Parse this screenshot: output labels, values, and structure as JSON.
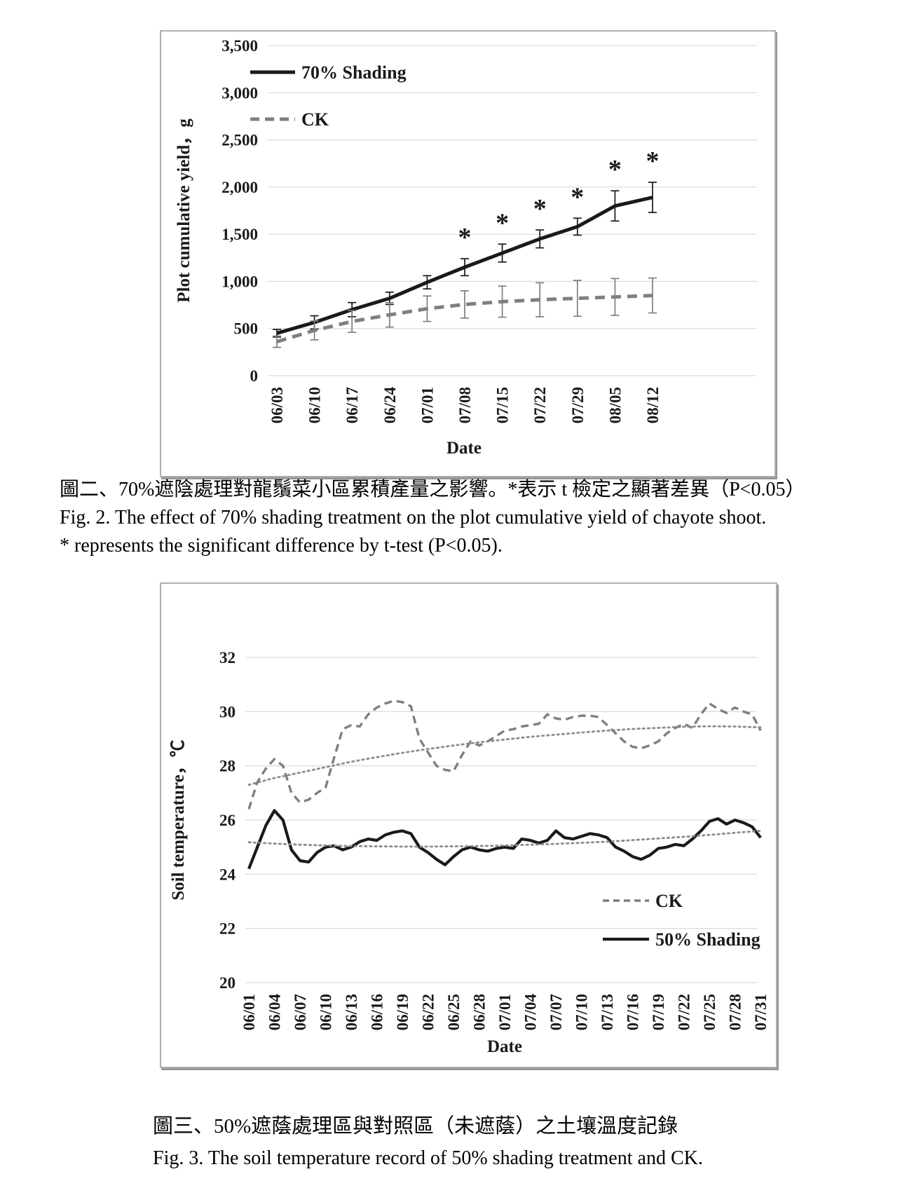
{
  "page": {
    "background": "#ffffff"
  },
  "colors": {
    "black_series": "#1a1a1a",
    "gray_series": "#7f7f7f",
    "trend": "#8c8c8c",
    "grid": "#dcdcdc",
    "text": "#1a1a1a",
    "panel_border": "#aeaeae"
  },
  "chart_data": [
    {
      "type": "line",
      "title": "",
      "xlabel": "Date",
      "ylabel": "Plot cumulative yield，g",
      "ylim": [
        0,
        3500
      ],
      "ytick_step": 500,
      "ytick_labels": [
        "0",
        "500",
        "1,000",
        "1,500",
        "2,000",
        "2,500",
        "3,000",
        "3,500"
      ],
      "grid": true,
      "legend_position": "inside-top-left",
      "categories": [
        "06/03",
        "06/10",
        "06/17",
        "06/24",
        "07/01",
        "07/08",
        "07/15",
        "07/22",
        "07/29",
        "08/05",
        "08/12"
      ],
      "series": [
        {
          "name": "70% Shading",
          "style": "solid",
          "color": "#1a1a1a",
          "width": 5,
          "values": [
            450,
            565,
            700,
            820,
            990,
            1150,
            1300,
            1450,
            1580,
            1800,
            1890
          ],
          "errors": [
            40,
            70,
            75,
            65,
            70,
            90,
            95,
            95,
            90,
            160,
            160
          ]
        },
        {
          "name": "CK",
          "style": "dashed",
          "dash": "14 9",
          "color": "#7f7f7f",
          "width": 5,
          "values": [
            360,
            480,
            575,
            645,
            710,
            755,
            785,
            805,
            820,
            835,
            850
          ],
          "errors": [
            60,
            100,
            115,
            130,
            135,
            145,
            165,
            180,
            190,
            195,
            185
          ]
        }
      ],
      "legend": [
        {
          "label": "70% Shading",
          "style": "solid",
          "color": "#1a1a1a",
          "width": 5
        },
        {
          "label": "CK",
          "style": "dashed",
          "dash": "13 8",
          "color": "#7f7f7f",
          "width": 5
        }
      ],
      "significance": {
        "symbol": "*",
        "series": "70% Shading",
        "indices": [
          5,
          6,
          7,
          8,
          9,
          10
        ],
        "note": "asterisk above 70% Shading points from 07/08 through 08/12"
      }
    },
    {
      "type": "line",
      "title": "",
      "xlabel": "Date",
      "ylabel": "Soil temperature，℃",
      "ylim": [
        20,
        32
      ],
      "ytick_step": 2,
      "ytick_labels": [
        "20",
        "22",
        "24",
        "26",
        "28",
        "30",
        "32"
      ],
      "grid": true,
      "legend_position": "inside-right",
      "x_tick_labels": [
        "06/01",
        "06/04",
        "06/07",
        "06/10",
        "06/13",
        "06/16",
        "06/19",
        "06/22",
        "06/25",
        "06/28",
        "07/01",
        "07/04",
        "07/07",
        "07/10",
        "07/13",
        "07/16",
        "07/19",
        "07/22",
        "07/25",
        "07/28",
        "07/31"
      ],
      "x_is_daily": true,
      "series": [
        {
          "name": "CK",
          "style": "dashed",
          "dash": "11 7",
          "color": "#7f7f7f",
          "width": 3.4,
          "stride": 1,
          "values": [
            26.4,
            27.4,
            27.9,
            28.25,
            28.0,
            27.0,
            26.65,
            26.75,
            27.0,
            27.2,
            28.3,
            29.35,
            29.5,
            29.45,
            29.9,
            30.15,
            30.3,
            30.4,
            30.35,
            30.2,
            29.0,
            28.5,
            28.0,
            27.85,
            27.8,
            28.4,
            28.9,
            28.75,
            28.9,
            29.1,
            29.3,
            29.35,
            29.45,
            29.5,
            29.55,
            29.9,
            29.75,
            29.7,
            29.8,
            29.85,
            29.85,
            29.8,
            29.5,
            29.2,
            28.9,
            28.7,
            28.65,
            28.75,
            28.9,
            29.2,
            29.4,
            29.55,
            29.4,
            29.9,
            30.3,
            30.1,
            29.95,
            30.15,
            30.0,
            29.9,
            29.3
          ]
        },
        {
          "name": "CK trend",
          "style": "dotted",
          "color": "#8c8c8c",
          "width": 2.8,
          "stride": 3,
          "values": [
            27.3,
            27.55,
            27.75,
            27.95,
            28.15,
            28.32,
            28.48,
            28.62,
            28.75,
            28.87,
            28.97,
            29.07,
            29.15,
            29.23,
            29.3,
            29.36,
            29.4,
            29.44,
            29.46,
            29.45,
            29.42
          ]
        },
        {
          "name": "50% Shading",
          "style": "solid",
          "color": "#1a1a1a",
          "width": 4.2,
          "stride": 1,
          "values": [
            24.2,
            25.0,
            25.8,
            26.35,
            26.0,
            24.9,
            24.5,
            24.45,
            24.8,
            25.0,
            25.05,
            24.9,
            25.0,
            25.2,
            25.3,
            25.25,
            25.45,
            25.55,
            25.6,
            25.5,
            25.0,
            24.8,
            24.55,
            24.35,
            24.65,
            24.9,
            25.0,
            24.9,
            24.85,
            24.95,
            25.0,
            24.95,
            25.3,
            25.25,
            25.15,
            25.25,
            25.6,
            25.35,
            25.3,
            25.4,
            25.5,
            25.45,
            25.35,
            25.0,
            24.85,
            24.65,
            24.55,
            24.7,
            24.95,
            25.0,
            25.1,
            25.05,
            25.3,
            25.6,
            25.95,
            26.05,
            25.85,
            26.0,
            25.9,
            25.75,
            25.35
          ]
        },
        {
          "name": "50% Shading trend",
          "style": "dotted",
          "color": "#8c8c8c",
          "width": 2.8,
          "stride": 3,
          "values": [
            25.18,
            25.13,
            25.09,
            25.06,
            25.04,
            25.03,
            25.02,
            25.02,
            25.03,
            25.04,
            25.06,
            25.09,
            25.12,
            25.16,
            25.2,
            25.26,
            25.32,
            25.38,
            25.45,
            25.53,
            25.6
          ]
        }
      ],
      "legend": [
        {
          "label": "CK",
          "style": "dashed",
          "dash": "9 6",
          "color": "#7f7f7f",
          "width": 3.4
        },
        {
          "label": "50% Shading",
          "style": "solid",
          "color": "#1a1a1a",
          "width": 4.2
        }
      ]
    }
  ],
  "captions": {
    "fig2": {
      "zh": "圖二、70%遮陰處理對龍鬚菜小區累積產量之影響。*表示 t 檢定之顯著差異（P<0.05）",
      "en1": "Fig. 2. The effect of 70% shading treatment on the plot cumulative yield of chayote shoot.",
      "en2": "* represents the significant difference by t-test (P<0.05)."
    },
    "fig3": {
      "zh": "圖三、50%遮蔭處理區與對照區（未遮蔭）之土壤溫度記錄",
      "en": "Fig. 3. The soil temperature record of 50% shading treatment and CK."
    }
  }
}
